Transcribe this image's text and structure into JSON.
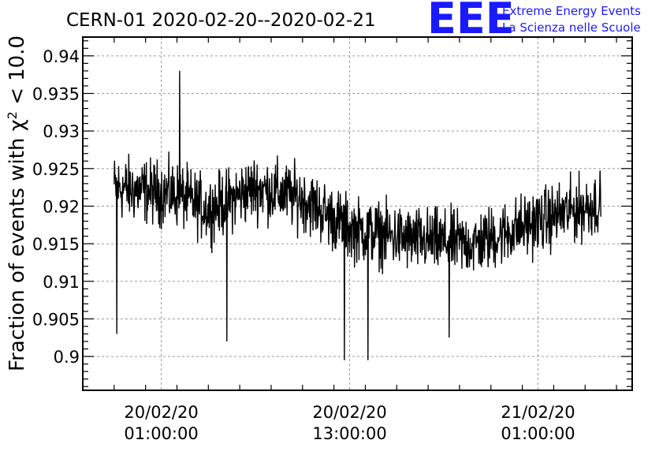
{
  "header": {
    "title": "CERN-01 2020-02-20--2020-02-21",
    "logo_text": "EEE",
    "logo_line1": "Extreme Energy Events",
    "logo_line2": "La Scienza nelle Scuole"
  },
  "colors": {
    "accent": "#1a1aff",
    "series": "#000000",
    "grid": "#9a9a9a"
  },
  "chart_data": {
    "type": "line",
    "title": "CERN-01 2020-02-20--2020-02-21",
    "ylabel_prefix": "Fraction of events with ",
    "ylabel_symbol": "χ",
    "ylabel_sup": "2",
    "ylabel_suffix": " < 10.0",
    "xlabel": "",
    "ylim": [
      0.8955,
      0.9425
    ],
    "xlim": [
      "2020-02-19 20:00:00",
      "2020-02-21 07:00:00"
    ],
    "grid": true,
    "y_ticks": [
      0.9,
      0.905,
      0.91,
      0.915,
      0.92,
      0.925,
      0.93,
      0.935,
      0.94
    ],
    "y_tick_labels": [
      "0.9",
      "0.905",
      "0.91",
      "0.915",
      "0.92",
      "0.925",
      "0.93",
      "0.935",
      "0.94"
    ],
    "x_ticks": [
      {
        "x": "2020-02-20 01:00:00",
        "date": "20/02/20",
        "time": "01:00:00"
      },
      {
        "x": "2020-02-20 13:00:00",
        "date": "20/02/20",
        "time": "13:00:00"
      },
      {
        "x": "2020-02-21 01:00:00",
        "date": "21/02/20",
        "time": "01:00:00"
      }
    ],
    "x_range": [
      "2020-02-19 22:00:00",
      "2020-02-21 05:00:00"
    ],
    "series_trend": [
      {
        "x": "2020-02-19 22:00:00",
        "y": 0.9225
      },
      {
        "x": "2020-02-20 02:00:00",
        "y": 0.9215
      },
      {
        "x": "2020-02-20 04:00:00",
        "y": 0.9195
      },
      {
        "x": "2020-02-20 07:00:00",
        "y": 0.9225
      },
      {
        "x": "2020-02-20 10:00:00",
        "y": 0.921
      },
      {
        "x": "2020-02-20 13:00:00",
        "y": 0.917
      },
      {
        "x": "2020-02-20 17:00:00",
        "y": 0.9155
      },
      {
        "x": "2020-02-20 21:00:00",
        "y": 0.915
      },
      {
        "x": "2020-02-21 01:00:00",
        "y": 0.918
      },
      {
        "x": "2020-02-21 05:00:00",
        "y": 0.9205
      }
    ],
    "series_noise": 0.0035,
    "spikes": [
      {
        "x": "2020-02-19 22:10:00",
        "y": 0.903
      },
      {
        "x": "2020-02-20 02:10:00",
        "y": 0.938
      },
      {
        "x": "2020-02-20 05:10:00",
        "y": 0.902
      },
      {
        "x": "2020-02-20 12:40:00",
        "y": 0.8995
      },
      {
        "x": "2020-02-20 14:10:00",
        "y": 0.8995
      },
      {
        "x": "2020-02-20 19:20:00",
        "y": 0.9025
      }
    ]
  }
}
